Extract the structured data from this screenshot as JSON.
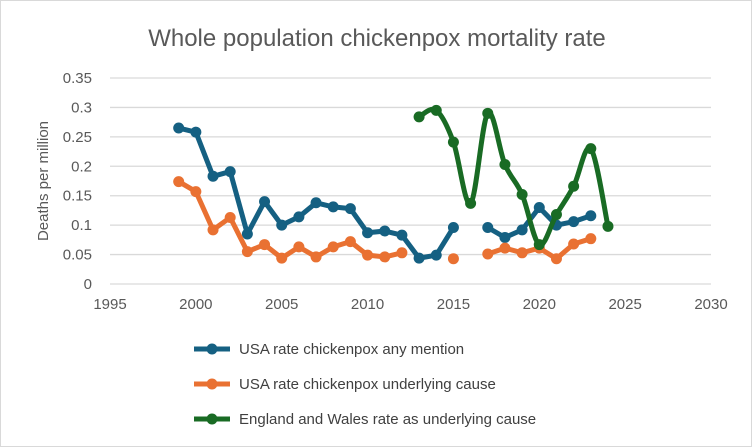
{
  "chart_data": {
    "type": "line",
    "title": "Whole population chickenpox mortality rate",
    "xlabel": "",
    "ylabel": "Deaths per million",
    "xlim": [
      1995,
      2030
    ],
    "ylim": [
      0,
      0.35
    ],
    "xticks": [
      "1995",
      "2000",
      "2005",
      "2010",
      "2015",
      "2020",
      "2025",
      "2030"
    ],
    "yticks": [
      "0",
      "0.05",
      "0.1",
      "0.15",
      "0.2",
      "0.25",
      "0.3",
      "0.35"
    ],
    "grid": "horizontal",
    "legend_position": "bottom",
    "series": [
      {
        "name": "USA rate chickenpox any mention",
        "color": "#156082",
        "smooth": false,
        "points": [
          [
            1999,
            0.265
          ],
          [
            2000,
            0.258
          ],
          [
            2001,
            0.183
          ],
          [
            2002,
            0.191
          ],
          [
            2003,
            0.085
          ],
          [
            2004,
            0.14
          ],
          [
            2005,
            0.1
          ],
          [
            2006,
            0.114
          ],
          [
            2007,
            0.138
          ],
          [
            2008,
            0.131
          ],
          [
            2009,
            0.128
          ],
          [
            2010,
            0.087
          ],
          [
            2011,
            0.09
          ],
          [
            2012,
            0.083
          ],
          [
            2013,
            0.044
          ],
          [
            2014,
            0.049
          ],
          [
            2015,
            0.096
          ],
          [
            2016,
            null
          ],
          [
            2017,
            0.096
          ],
          [
            2018,
            0.079
          ],
          [
            2019,
            0.092
          ],
          [
            2020,
            0.13
          ],
          [
            2021,
            0.1
          ],
          [
            2022,
            0.106
          ],
          [
            2023,
            0.116
          ]
        ]
      },
      {
        "name": "USA rate chickenpox underlying cause",
        "color": "#E97132",
        "smooth": false,
        "points": [
          [
            1999,
            0.174
          ],
          [
            2000,
            0.157
          ],
          [
            2001,
            0.092
          ],
          [
            2002,
            0.113
          ],
          [
            2003,
            0.055
          ],
          [
            2004,
            0.067
          ],
          [
            2005,
            0.044
          ],
          [
            2006,
            0.063
          ],
          [
            2007,
            0.046
          ],
          [
            2008,
            0.063
          ],
          [
            2009,
            0.072
          ],
          [
            2010,
            0.049
          ],
          [
            2011,
            0.046
          ],
          [
            2012,
            0.053
          ],
          [
            2013,
            null
          ],
          [
            2014,
            null
          ],
          [
            2015,
            0.043
          ],
          [
            2016,
            null
          ],
          [
            2017,
            0.051
          ],
          [
            2018,
            0.061
          ],
          [
            2019,
            0.053
          ],
          [
            2020,
            0.061
          ],
          [
            2021,
            0.043
          ],
          [
            2022,
            0.068
          ],
          [
            2023,
            0.077
          ]
        ]
      },
      {
        "name": "England and Wales rate as underlying cause",
        "color": "#196B24",
        "smooth": true,
        "points": [
          [
            2013,
            0.284
          ],
          [
            2014,
            0.295
          ],
          [
            2015,
            0.241
          ],
          [
            2016,
            0.137
          ],
          [
            2017,
            0.29
          ],
          [
            2018,
            0.203
          ],
          [
            2019,
            0.152
          ],
          [
            2020,
            0.067
          ],
          [
            2021,
            0.118
          ],
          [
            2022,
            0.166
          ],
          [
            2023,
            0.23
          ],
          [
            2024,
            0.098
          ]
        ]
      }
    ]
  }
}
